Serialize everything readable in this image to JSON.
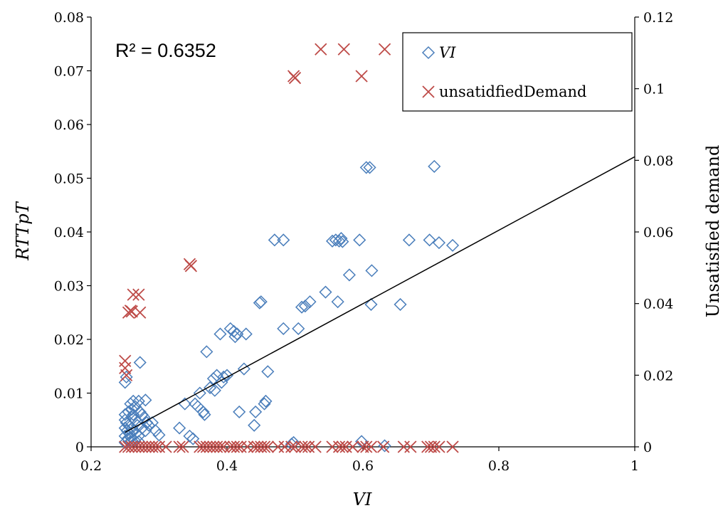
{
  "chart_data": {
    "type": "scatter",
    "title": "",
    "xlabel": "VI",
    "ylabel": "RTTpT",
    "y2label": "Unsatisfied demand",
    "xlim": [
      0.2,
      1.0
    ],
    "ylim": [
      0,
      0.08
    ],
    "y2lim": [
      0,
      0.12
    ],
    "x_ticks": [
      "0.2",
      "0.4",
      "0.6",
      "0.8",
      "1"
    ],
    "y_ticks": [
      "0",
      "0.01",
      "0.02",
      "0.03",
      "0.04",
      "0.05",
      "0.06",
      "0.07",
      "0.08"
    ],
    "y2_ticks": [
      "0",
      "0.02",
      "0.04",
      "0.06",
      "0.08",
      "0.1",
      "0.12"
    ],
    "annotation": "R² = 0.6352",
    "grid": false,
    "legend_position": "top-right",
    "series": [
      {
        "name": "VI",
        "axis": "left",
        "marker": "diamond",
        "color": "#4a7ebb",
        "points": [
          [
            0.25,
            0.012
          ],
          [
            0.252,
            0.013
          ],
          [
            0.258,
            0.008
          ],
          [
            0.262,
            0.0085
          ],
          [
            0.27,
            0.0085
          ],
          [
            0.28,
            0.0087
          ],
          [
            0.272,
            0.0157
          ],
          [
            0.275,
            0.006
          ],
          [
            0.282,
            0.0045
          ],
          [
            0.285,
            0.004
          ],
          [
            0.29,
            0.0045
          ],
          [
            0.295,
            0.003
          ],
          [
            0.3,
            0.0022
          ],
          [
            0.25,
            0.005
          ],
          [
            0.252,
            0.0045
          ],
          [
            0.255,
            0.004
          ],
          [
            0.25,
            0.0035
          ],
          [
            0.253,
            0.003
          ],
          [
            0.256,
            0.0025
          ],
          [
            0.25,
            0.002
          ],
          [
            0.254,
            0.0015
          ],
          [
            0.258,
            0.001
          ],
          [
            0.25,
            0.0008
          ],
          [
            0.26,
            0.0055
          ],
          [
            0.262,
            0.006
          ],
          [
            0.265,
            0.005
          ],
          [
            0.268,
            0.004
          ],
          [
            0.26,
            0.0035
          ],
          [
            0.263,
            0.003
          ],
          [
            0.266,
            0.0025
          ],
          [
            0.27,
            0.002
          ],
          [
            0.258,
            0.0018
          ],
          [
            0.264,
            0.0012
          ],
          [
            0.27,
            0.001
          ],
          [
            0.255,
            0.0065
          ],
          [
            0.26,
            0.007
          ],
          [
            0.265,
            0.0075
          ],
          [
            0.272,
            0.0065
          ],
          [
            0.278,
            0.0055
          ],
          [
            0.25,
            0.006
          ],
          [
            0.275,
            0.0035
          ],
          [
            0.28,
            0.003
          ],
          [
            0.33,
            0.0035
          ],
          [
            0.338,
            0.008
          ],
          [
            0.345,
            0.002
          ],
          [
            0.35,
            0.0015
          ],
          [
            0.353,
            0.008
          ],
          [
            0.357,
            0.0075
          ],
          [
            0.36,
            0.01
          ],
          [
            0.365,
            0.0065
          ],
          [
            0.367,
            0.006
          ],
          [
            0.37,
            0.0177
          ],
          [
            0.375,
            0.011
          ],
          [
            0.38,
            0.0127
          ],
          [
            0.382,
            0.0105
          ],
          [
            0.385,
            0.0133
          ],
          [
            0.39,
            0.021
          ],
          [
            0.392,
            0.012
          ],
          [
            0.395,
            0.013
          ],
          [
            0.4,
            0.0133
          ],
          [
            0.405,
            0.022
          ],
          [
            0.41,
            0.0215
          ],
          [
            0.412,
            0.0205
          ],
          [
            0.415,
            0.021
          ],
          [
            0.418,
            0.0065
          ],
          [
            0.425,
            0.0145
          ],
          [
            0.428,
            0.021
          ],
          [
            0.44,
            0.004
          ],
          [
            0.442,
            0.0065
          ],
          [
            0.448,
            0.0268
          ],
          [
            0.45,
            0.027
          ],
          [
            0.455,
            0.008
          ],
          [
            0.457,
            0.0085
          ],
          [
            0.46,
            0.014
          ],
          [
            0.47,
            0.0385
          ],
          [
            0.483,
            0.0385
          ],
          [
            0.483,
            0.022
          ],
          [
            0.495,
            0.0005
          ],
          [
            0.498,
            0.0008
          ],
          [
            0.505,
            0.022
          ],
          [
            0.51,
            0.026
          ],
          [
            0.515,
            0.0262
          ],
          [
            0.522,
            0.027
          ],
          [
            0.545,
            0.0288
          ],
          [
            0.555,
            0.0383
          ],
          [
            0.56,
            0.0385
          ],
          [
            0.563,
            0.027
          ],
          [
            0.565,
            0.0383
          ],
          [
            0.568,
            0.0388
          ],
          [
            0.57,
            0.0382
          ],
          [
            0.58,
            0.032
          ],
          [
            0.595,
            0.0385
          ],
          [
            0.598,
            0.001
          ],
          [
            0.605,
            0.052
          ],
          [
            0.61,
            0.052
          ],
          [
            0.612,
            0.0265
          ],
          [
            0.613,
            0.0328
          ],
          [
            0.632,
            0.0002
          ],
          [
            0.655,
            0.0265
          ],
          [
            0.668,
            0.0385
          ],
          [
            0.698,
            0.0385
          ],
          [
            0.705,
            0.0522
          ],
          [
            0.712,
            0.038
          ],
          [
            0.732,
            0.0375
          ]
        ]
      },
      {
        "name": "unsatidfiedDemand",
        "axis": "right",
        "marker": "x",
        "color": "#be4b48",
        "points": [
          [
            0.25,
            0.024
          ],
          [
            0.25,
            0.022
          ],
          [
            0.252,
            0.02
          ],
          [
            0.255,
            0.0375
          ],
          [
            0.258,
            0.038
          ],
          [
            0.26,
            0.0378
          ],
          [
            0.262,
            0.0425
          ],
          [
            0.27,
            0.0425
          ],
          [
            0.272,
            0.0375
          ],
          [
            0.345,
            0.051
          ],
          [
            0.347,
            0.0505
          ],
          [
            0.498,
            0.1035
          ],
          [
            0.5,
            0.103
          ],
          [
            0.538,
            0.111
          ],
          [
            0.572,
            0.111
          ],
          [
            0.598,
            0.1035
          ],
          [
            0.632,
            0.111
          ],
          [
            0.25,
            0.0
          ],
          [
            0.255,
            0.0
          ],
          [
            0.26,
            0.0
          ],
          [
            0.265,
            0.0
          ],
          [
            0.27,
            0.0
          ],
          [
            0.275,
            0.0
          ],
          [
            0.28,
            0.0
          ],
          [
            0.285,
            0.0
          ],
          [
            0.29,
            0.0
          ],
          [
            0.295,
            0.0
          ],
          [
            0.3,
            0.0
          ],
          [
            0.31,
            0.0
          ],
          [
            0.33,
            0.0
          ],
          [
            0.335,
            0.0
          ],
          [
            0.36,
            0.0
          ],
          [
            0.365,
            0.0
          ],
          [
            0.37,
            0.0
          ],
          [
            0.375,
            0.0
          ],
          [
            0.38,
            0.0
          ],
          [
            0.385,
            0.0
          ],
          [
            0.39,
            0.0
          ],
          [
            0.395,
            0.0
          ],
          [
            0.405,
            0.0
          ],
          [
            0.41,
            0.0
          ],
          [
            0.415,
            0.0
          ],
          [
            0.42,
            0.0
          ],
          [
            0.43,
            0.0
          ],
          [
            0.44,
            0.0
          ],
          [
            0.445,
            0.0
          ],
          [
            0.45,
            0.0
          ],
          [
            0.455,
            0.0
          ],
          [
            0.46,
            0.0
          ],
          [
            0.475,
            0.0
          ],
          [
            0.485,
            0.0
          ],
          [
            0.495,
            0.0
          ],
          [
            0.5,
            0.0
          ],
          [
            0.51,
            0.0
          ],
          [
            0.515,
            0.0
          ],
          [
            0.52,
            0.0
          ],
          [
            0.53,
            0.0
          ],
          [
            0.555,
            0.0
          ],
          [
            0.565,
            0.0
          ],
          [
            0.57,
            0.0
          ],
          [
            0.575,
            0.0
          ],
          [
            0.585,
            0.0
          ],
          [
            0.6,
            0.0
          ],
          [
            0.605,
            0.0
          ],
          [
            0.612,
            0.0
          ],
          [
            0.63,
            0.0
          ],
          [
            0.66,
            0.0
          ],
          [
            0.67,
            0.0
          ],
          [
            0.695,
            0.0
          ],
          [
            0.7,
            0.0
          ],
          [
            0.705,
            0.0
          ],
          [
            0.712,
            0.0
          ],
          [
            0.732,
            0.0
          ]
        ]
      }
    ],
    "trendline": {
      "series": "VI",
      "type": "linear",
      "x_start": 0.25,
      "y_start": 0.0027,
      "x_end": 1.0,
      "y_end": 0.054
    }
  }
}
